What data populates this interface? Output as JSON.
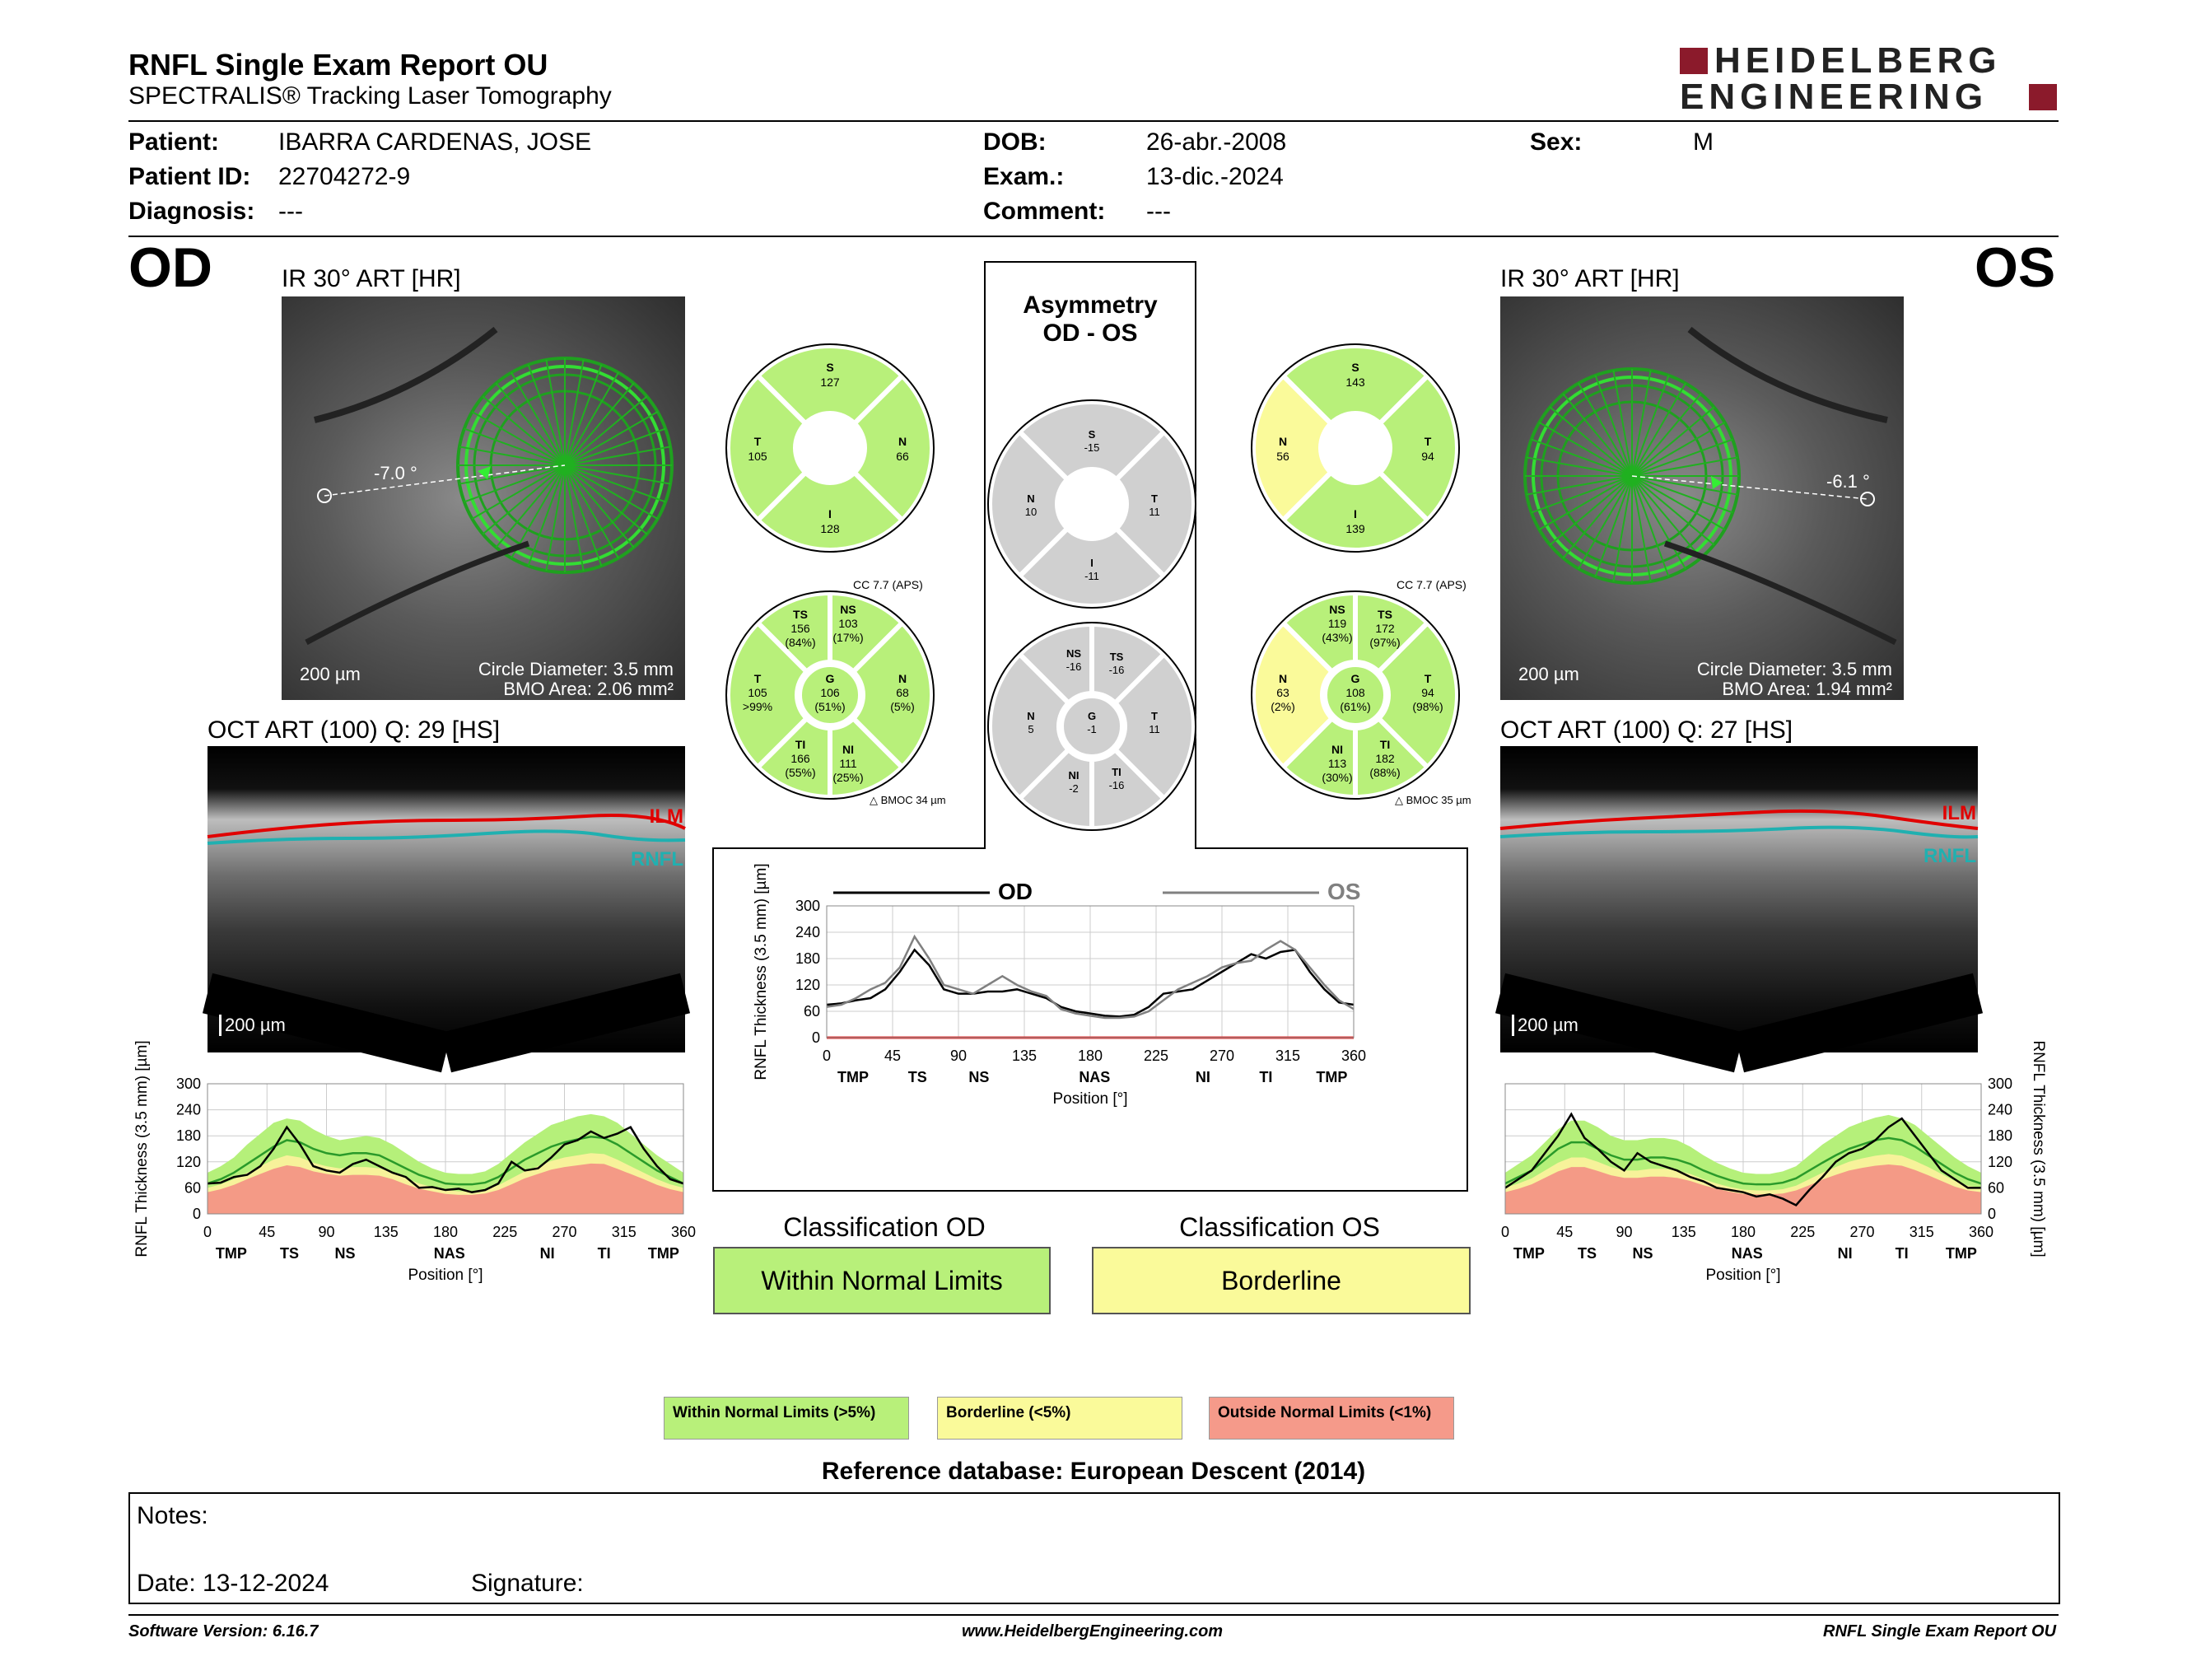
{
  "header": {
    "title": "RNFL Single Exam Report OU",
    "subtitle": "SPECTRALIS® Tracking Laser Tomography",
    "brand_line1": "HEIDELBERG",
    "brand_line2": "ENGINEERING",
    "brand_color": "#8b1a2b"
  },
  "patient": {
    "patient_label": "Patient:",
    "patient_value": "IBARRA CARDENAS, JOSE",
    "id_label": "Patient ID:",
    "id_value": "22704272-9",
    "diagnosis_label": "Diagnosis:",
    "diagnosis_value": "---",
    "dob_label": "DOB:",
    "dob_value": "26-abr.-2008",
    "exam_label": "Exam.:",
    "exam_value": "13-dic.-2024",
    "comment_label": "Comment:",
    "comment_value": "---",
    "sex_label": "Sex:",
    "sex_value": "M"
  },
  "od": {
    "eye": "OD",
    "ir_title": "IR 30° ART [HR]",
    "angle": "-7.0 °",
    "scale": "200 µm",
    "circle_diameter": "Circle Diameter: 3.5 mm",
    "bmo_area": "BMO Area: 2.06 mm²",
    "oct_title": "OCT ART (100) Q: 29 [HS]",
    "oct_scale": "200 µm",
    "ilm": "ILM",
    "rnfl": "RNFL",
    "sectors4": {
      "S": "S",
      "S_v": "127",
      "T": "T",
      "T_v": "105",
      "N": "N",
      "N_v": "66",
      "I": "I",
      "I_v": "128"
    },
    "cc": "CC 7.7 (APS)",
    "bmoc": "BMOC 34 µm",
    "sectors6": {
      "TS": "TS",
      "TS_v": "156",
      "TS_p": "(84%)",
      "NS": "NS",
      "NS_v": "103",
      "NS_p": "(17%)",
      "T": "T",
      "T_v": "105",
      "T_p": ">99%",
      "G": "G",
      "G_v": "106",
      "G_p": "(51%)",
      "N": "N",
      "N_v": "68",
      "N_p": "(5%)",
      "TI": "TI",
      "TI_v": "166",
      "TI_p": "(55%)",
      "NI": "NI",
      "NI_v": "111",
      "NI_p": "(25%)"
    },
    "classification_title": "Classification OD",
    "classification": "Within Normal Limits"
  },
  "os": {
    "eye": "OS",
    "ir_title": "IR 30° ART [HR]",
    "angle": "-6.1 °",
    "scale": "200 µm",
    "circle_diameter": "Circle Diameter: 3.5 mm",
    "bmo_area": "BMO Area: 1.94 mm²",
    "oct_title": "OCT ART (100) Q: 27 [HS]",
    "oct_scale": "200 µm",
    "ilm": "ILM",
    "rnfl": "RNFL",
    "sectors4": {
      "S": "S",
      "S_v": "143",
      "T": "T",
      "T_v": "94",
      "N": "N",
      "N_v": "56",
      "I": "I",
      "I_v": "139"
    },
    "cc": "CC 7.7 (APS)",
    "bmoc": "BMOC 35 µm",
    "sectors6": {
      "NS": "NS",
      "NS_v": "119",
      "NS_p": "(43%)",
      "TS": "TS",
      "TS_v": "172",
      "TS_p": "(97%)",
      "N": "N",
      "N_v": "63",
      "N_p": "(2%)",
      "G": "G",
      "G_v": "108",
      "G_p": "(61%)",
      "T": "T",
      "T_v": "94",
      "T_p": "(98%)",
      "NI": "NI",
      "NI_v": "113",
      "NI_p": "(30%)",
      "TI": "TI",
      "TI_v": "182",
      "TI_p": "(88%)"
    },
    "classification_title": "Classification OS",
    "classification": "Borderline"
  },
  "asymmetry": {
    "title1": "Asymmetry",
    "title2": "OD - OS",
    "sectors4": {
      "S": "S",
      "S_v": "-15",
      "N": "N",
      "N_v": "10",
      "T": "T",
      "T_v": "11",
      "I": "I",
      "I_v": "-11"
    },
    "sectors6": {
      "NS": "NS",
      "NS_v": "-16",
      "TS": "TS",
      "TS_v": "-16",
      "N": "N",
      "N_v": "5",
      "G": "G",
      "G_v": "-1",
      "T": "T",
      "T_v": "11",
      "NI": "NI",
      "NI_v": "-2",
      "TI": "TI",
      "TI_v": "-16"
    }
  },
  "colors": {
    "normal": "#b8f07a",
    "borderline": "#fafa9a",
    "outside": "#f59a8a",
    "asym": "#d0d0d0",
    "green_band": "#b5f07a",
    "yellow_band": "#f7f29a",
    "red_band": "#f49a86",
    "od_line": "#000000",
    "os_line": "#808080"
  },
  "legend": {
    "normal": "Within Normal Limits (>5%)",
    "borderline": "Borderline (<5%)",
    "outside": "Outside Normal Limits (<1%)"
  },
  "reference": "Reference database: European Descent (2014)",
  "notes": {
    "notes_label": "Notes:",
    "date_label": "Date: 13-12-2024",
    "signature_label": "Signature:"
  },
  "footer": {
    "left": "Software Version: 6.16.7",
    "center": "www.HeidelbergEngineering.com",
    "right": "RNFL Single Exam Report OU"
  },
  "chart_data": [
    {
      "type": "line",
      "name": "od-profile",
      "ylabel": "RNFL Thickness (3.5 mm) [µm]",
      "xlabel": "Position [°]",
      "x_ticks": [
        0,
        45,
        90,
        135,
        180,
        225,
        270,
        315,
        360
      ],
      "y_ticks": [
        0,
        60,
        120,
        180,
        240,
        300
      ],
      "sector_labels": [
        {
          "x": 18,
          "label": "TMP"
        },
        {
          "x": 62,
          "label": "TS"
        },
        {
          "x": 104,
          "label": "NS"
        },
        {
          "x": 183,
          "label": "NAS"
        },
        {
          "x": 257,
          "label": "NI"
        },
        {
          "x": 300,
          "label": "TI"
        },
        {
          "x": 345,
          "label": "TMP"
        }
      ],
      "xlim": [
        0,
        360
      ],
      "ylim": [
        0,
        300
      ],
      "x": [
        0,
        10,
        20,
        30,
        40,
        50,
        60,
        70,
        80,
        90,
        100,
        110,
        120,
        130,
        140,
        150,
        160,
        170,
        180,
        190,
        200,
        210,
        220,
        230,
        240,
        250,
        260,
        270,
        280,
        290,
        300,
        310,
        320,
        330,
        340,
        350,
        360
      ],
      "measured": [
        70,
        72,
        85,
        90,
        110,
        150,
        200,
        160,
        110,
        100,
        95,
        115,
        125,
        110,
        95,
        85,
        60,
        62,
        55,
        58,
        50,
        55,
        70,
        120,
        100,
        105,
        130,
        160,
        170,
        190,
        175,
        185,
        200,
        150,
        110,
        80,
        70
      ],
      "normal_mean": [
        70,
        80,
        95,
        115,
        135,
        155,
        170,
        165,
        150,
        140,
        135,
        140,
        140,
        135,
        120,
        105,
        90,
        80,
        70,
        68,
        68,
        72,
        85,
        105,
        125,
        140,
        155,
        165,
        172,
        178,
        175,
        160,
        140,
        120,
        100,
        85,
        70
      ],
      "band_green_upper": [
        95,
        110,
        130,
        160,
        185,
        210,
        220,
        215,
        195,
        180,
        170,
        175,
        180,
        175,
        160,
        140,
        120,
        105,
        95,
        92,
        92,
        98,
        115,
        140,
        165,
        185,
        205,
        215,
        225,
        230,
        225,
        210,
        185,
        160,
        135,
        115,
        95
      ],
      "band_yellow_upper": [
        60,
        68,
        80,
        95,
        110,
        125,
        135,
        130,
        118,
        110,
        105,
        108,
        108,
        105,
        95,
        82,
        70,
        62,
        55,
        52,
        52,
        56,
        66,
        82,
        98,
        110,
        122,
        130,
        135,
        140,
        138,
        125,
        110,
        95,
        80,
        68,
        60
      ],
      "band_red_upper": [
        50,
        57,
        67,
        80,
        92,
        104,
        112,
        108,
        98,
        92,
        88,
        90,
        90,
        88,
        80,
        68,
        58,
        52,
        46,
        44,
        44,
        47,
        55,
        68,
        82,
        92,
        102,
        108,
        112,
        116,
        115,
        104,
        92,
        80,
        67,
        57,
        50
      ]
    },
    {
      "type": "line",
      "name": "asymmetry-profile",
      "ylabel": "RNFL Thickness (3.5 mm) [µm]",
      "xlabel": "Position [°]",
      "x_ticks": [
        0,
        45,
        90,
        135,
        180,
        225,
        270,
        315,
        360
      ],
      "y_ticks": [
        0,
        60,
        120,
        180,
        240,
        300
      ],
      "sector_labels": [
        {
          "x": 18,
          "label": "TMP"
        },
        {
          "x": 62,
          "label": "TS"
        },
        {
          "x": 104,
          "label": "NS"
        },
        {
          "x": 183,
          "label": "NAS"
        },
        {
          "x": 257,
          "label": "NI"
        },
        {
          "x": 300,
          "label": "TI"
        },
        {
          "x": 345,
          "label": "TMP"
        }
      ],
      "xlim": [
        0,
        360
      ],
      "ylim": [
        0,
        300
      ],
      "series": [
        {
          "name": "OD",
          "x": [
            0,
            10,
            20,
            30,
            40,
            50,
            60,
            70,
            80,
            90,
            100,
            110,
            120,
            130,
            140,
            150,
            160,
            170,
            180,
            190,
            200,
            210,
            220,
            230,
            240,
            250,
            260,
            270,
            280,
            290,
            300,
            310,
            320,
            330,
            340,
            350,
            360
          ],
          "values": [
            75,
            78,
            85,
            90,
            110,
            150,
            200,
            165,
            110,
            100,
            100,
            105,
            105,
            110,
            100,
            90,
            70,
            60,
            55,
            50,
            48,
            52,
            70,
            100,
            105,
            110,
            130,
            150,
            170,
            190,
            180,
            195,
            200,
            150,
            110,
            80,
            75
          ]
        },
        {
          "name": "OS",
          "x": [
            0,
            10,
            20,
            30,
            40,
            50,
            60,
            70,
            80,
            90,
            100,
            110,
            120,
            130,
            140,
            150,
            160,
            170,
            180,
            190,
            200,
            210,
            220,
            230,
            240,
            250,
            260,
            270,
            280,
            290,
            300,
            310,
            320,
            330,
            340,
            350,
            360
          ],
          "values": [
            70,
            75,
            90,
            110,
            125,
            160,
            230,
            180,
            120,
            110,
            100,
            120,
            140,
            120,
            105,
            95,
            65,
            55,
            50,
            45,
            45,
            48,
            60,
            85,
            110,
            125,
            140,
            160,
            170,
            175,
            200,
            220,
            200,
            160,
            120,
            85,
            65
          ]
        }
      ]
    },
    {
      "type": "line",
      "name": "os-profile",
      "ylabel": "RNFL Thickness (3.5 mm) [µm]",
      "xlabel": "Position [°]",
      "x_ticks": [
        0,
        45,
        90,
        135,
        180,
        225,
        270,
        315,
        360
      ],
      "y_ticks": [
        0,
        60,
        120,
        180,
        240,
        300
      ],
      "sector_labels": [
        {
          "x": 18,
          "label": "TMP"
        },
        {
          "x": 62,
          "label": "TS"
        },
        {
          "x": 104,
          "label": "NS"
        },
        {
          "x": 183,
          "label": "NAS"
        },
        {
          "x": 257,
          "label": "NI"
        },
        {
          "x": 300,
          "label": "TI"
        },
        {
          "x": 345,
          "label": "TMP"
        }
      ],
      "xlim": [
        0,
        360
      ],
      "ylim": [
        0,
        300
      ],
      "x": [
        0,
        10,
        20,
        30,
        40,
        50,
        60,
        70,
        80,
        90,
        100,
        110,
        120,
        130,
        140,
        150,
        160,
        170,
        180,
        190,
        200,
        210,
        220,
        230,
        240,
        250,
        260,
        270,
        280,
        290,
        300,
        310,
        320,
        330,
        340,
        350,
        360
      ],
      "measured": [
        60,
        80,
        100,
        140,
        180,
        230,
        175,
        150,
        120,
        100,
        140,
        120,
        110,
        100,
        85,
        75,
        60,
        55,
        50,
        40,
        45,
        35,
        20,
        55,
        85,
        120,
        140,
        150,
        170,
        200,
        220,
        180,
        140,
        100,
        80,
        60,
        60
      ],
      "normal_mean": [
        70,
        85,
        100,
        125,
        150,
        165,
        165,
        150,
        135,
        125,
        125,
        130,
        130,
        125,
        115,
        100,
        88,
        78,
        70,
        68,
        68,
        72,
        82,
        100,
        118,
        135,
        150,
        160,
        170,
        175,
        170,
        155,
        135,
        115,
        95,
        80,
        70
      ],
      "band_green_upper": [
        95,
        115,
        135,
        165,
        195,
        215,
        215,
        200,
        180,
        170,
        170,
        175,
        175,
        170,
        155,
        135,
        118,
        105,
        95,
        92,
        92,
        98,
        110,
        135,
        160,
        180,
        200,
        212,
        222,
        228,
        220,
        205,
        180,
        155,
        130,
        110,
        95
      ],
      "band_yellow_upper": [
        60,
        70,
        82,
        100,
        118,
        130,
        130,
        120,
        108,
        100,
        100,
        104,
        104,
        100,
        92,
        80,
        70,
        62,
        56,
        54,
        54,
        57,
        65,
        80,
        95,
        108,
        120,
        128,
        134,
        138,
        134,
        122,
        108,
        92,
        76,
        65,
        60
      ],
      "band_red_upper": [
        50,
        58,
        68,
        83,
        98,
        108,
        108,
        99,
        89,
        83,
        83,
        86,
        86,
        83,
        76,
        66,
        58,
        51,
        46,
        45,
        45,
        47,
        54,
        66,
        79,
        90,
        100,
        106,
        111,
        114,
        111,
        101,
        89,
        76,
        63,
        54,
        50
      ]
    }
  ]
}
